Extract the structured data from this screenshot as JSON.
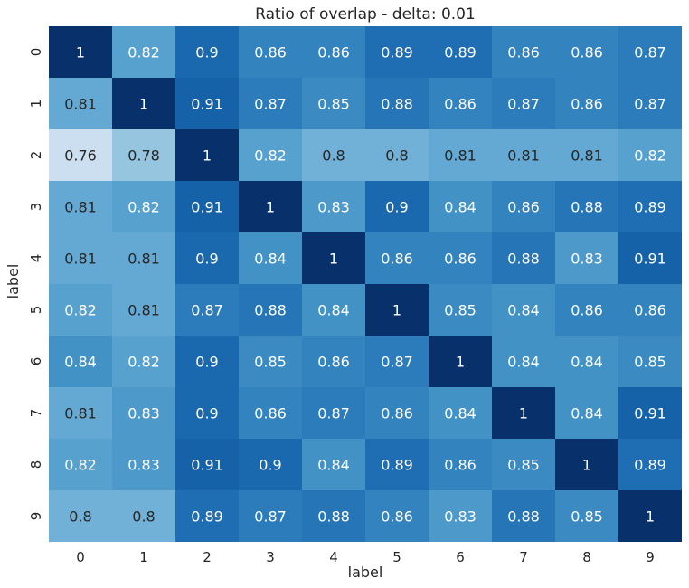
{
  "chart_data": {
    "type": "heatmap",
    "title": "Ratio of overlap - delta: 0.01",
    "xlabel": "label",
    "ylabel": "label",
    "x_categories": [
      "0",
      "1",
      "2",
      "3",
      "4",
      "5",
      "6",
      "7",
      "8",
      "9"
    ],
    "y_categories": [
      "0",
      "1",
      "2",
      "3",
      "4",
      "5",
      "6",
      "7",
      "8",
      "9"
    ],
    "values": [
      [
        1,
        0.82,
        0.9,
        0.86,
        0.86,
        0.89,
        0.89,
        0.86,
        0.86,
        0.87
      ],
      [
        0.81,
        1,
        0.91,
        0.87,
        0.85,
        0.88,
        0.86,
        0.87,
        0.86,
        0.87
      ],
      [
        0.76,
        0.78,
        1,
        0.82,
        0.8,
        0.8,
        0.81,
        0.81,
        0.81,
        0.82
      ],
      [
        0.81,
        0.82,
        0.91,
        1,
        0.83,
        0.9,
        0.84,
        0.86,
        0.88,
        0.89
      ],
      [
        0.81,
        0.81,
        0.9,
        0.84,
        1,
        0.86,
        0.86,
        0.88,
        0.83,
        0.91
      ],
      [
        0.82,
        0.81,
        0.87,
        0.88,
        0.84,
        1,
        0.85,
        0.84,
        0.86,
        0.86
      ],
      [
        0.84,
        0.82,
        0.9,
        0.85,
        0.86,
        0.87,
        1,
        0.84,
        0.84,
        0.85
      ],
      [
        0.81,
        0.83,
        0.9,
        0.86,
        0.87,
        0.86,
        0.84,
        1,
        0.84,
        0.91
      ],
      [
        0.82,
        0.83,
        0.91,
        0.9,
        0.84,
        0.89,
        0.86,
        0.85,
        1,
        0.89
      ],
      [
        0.8,
        0.8,
        0.89,
        0.87,
        0.88,
        0.86,
        0.83,
        0.88,
        0.85,
        1
      ]
    ],
    "colormap": "Blues",
    "color_range": [
      0.76,
      1
    ],
    "annotated": true,
    "colorbar": false
  }
}
